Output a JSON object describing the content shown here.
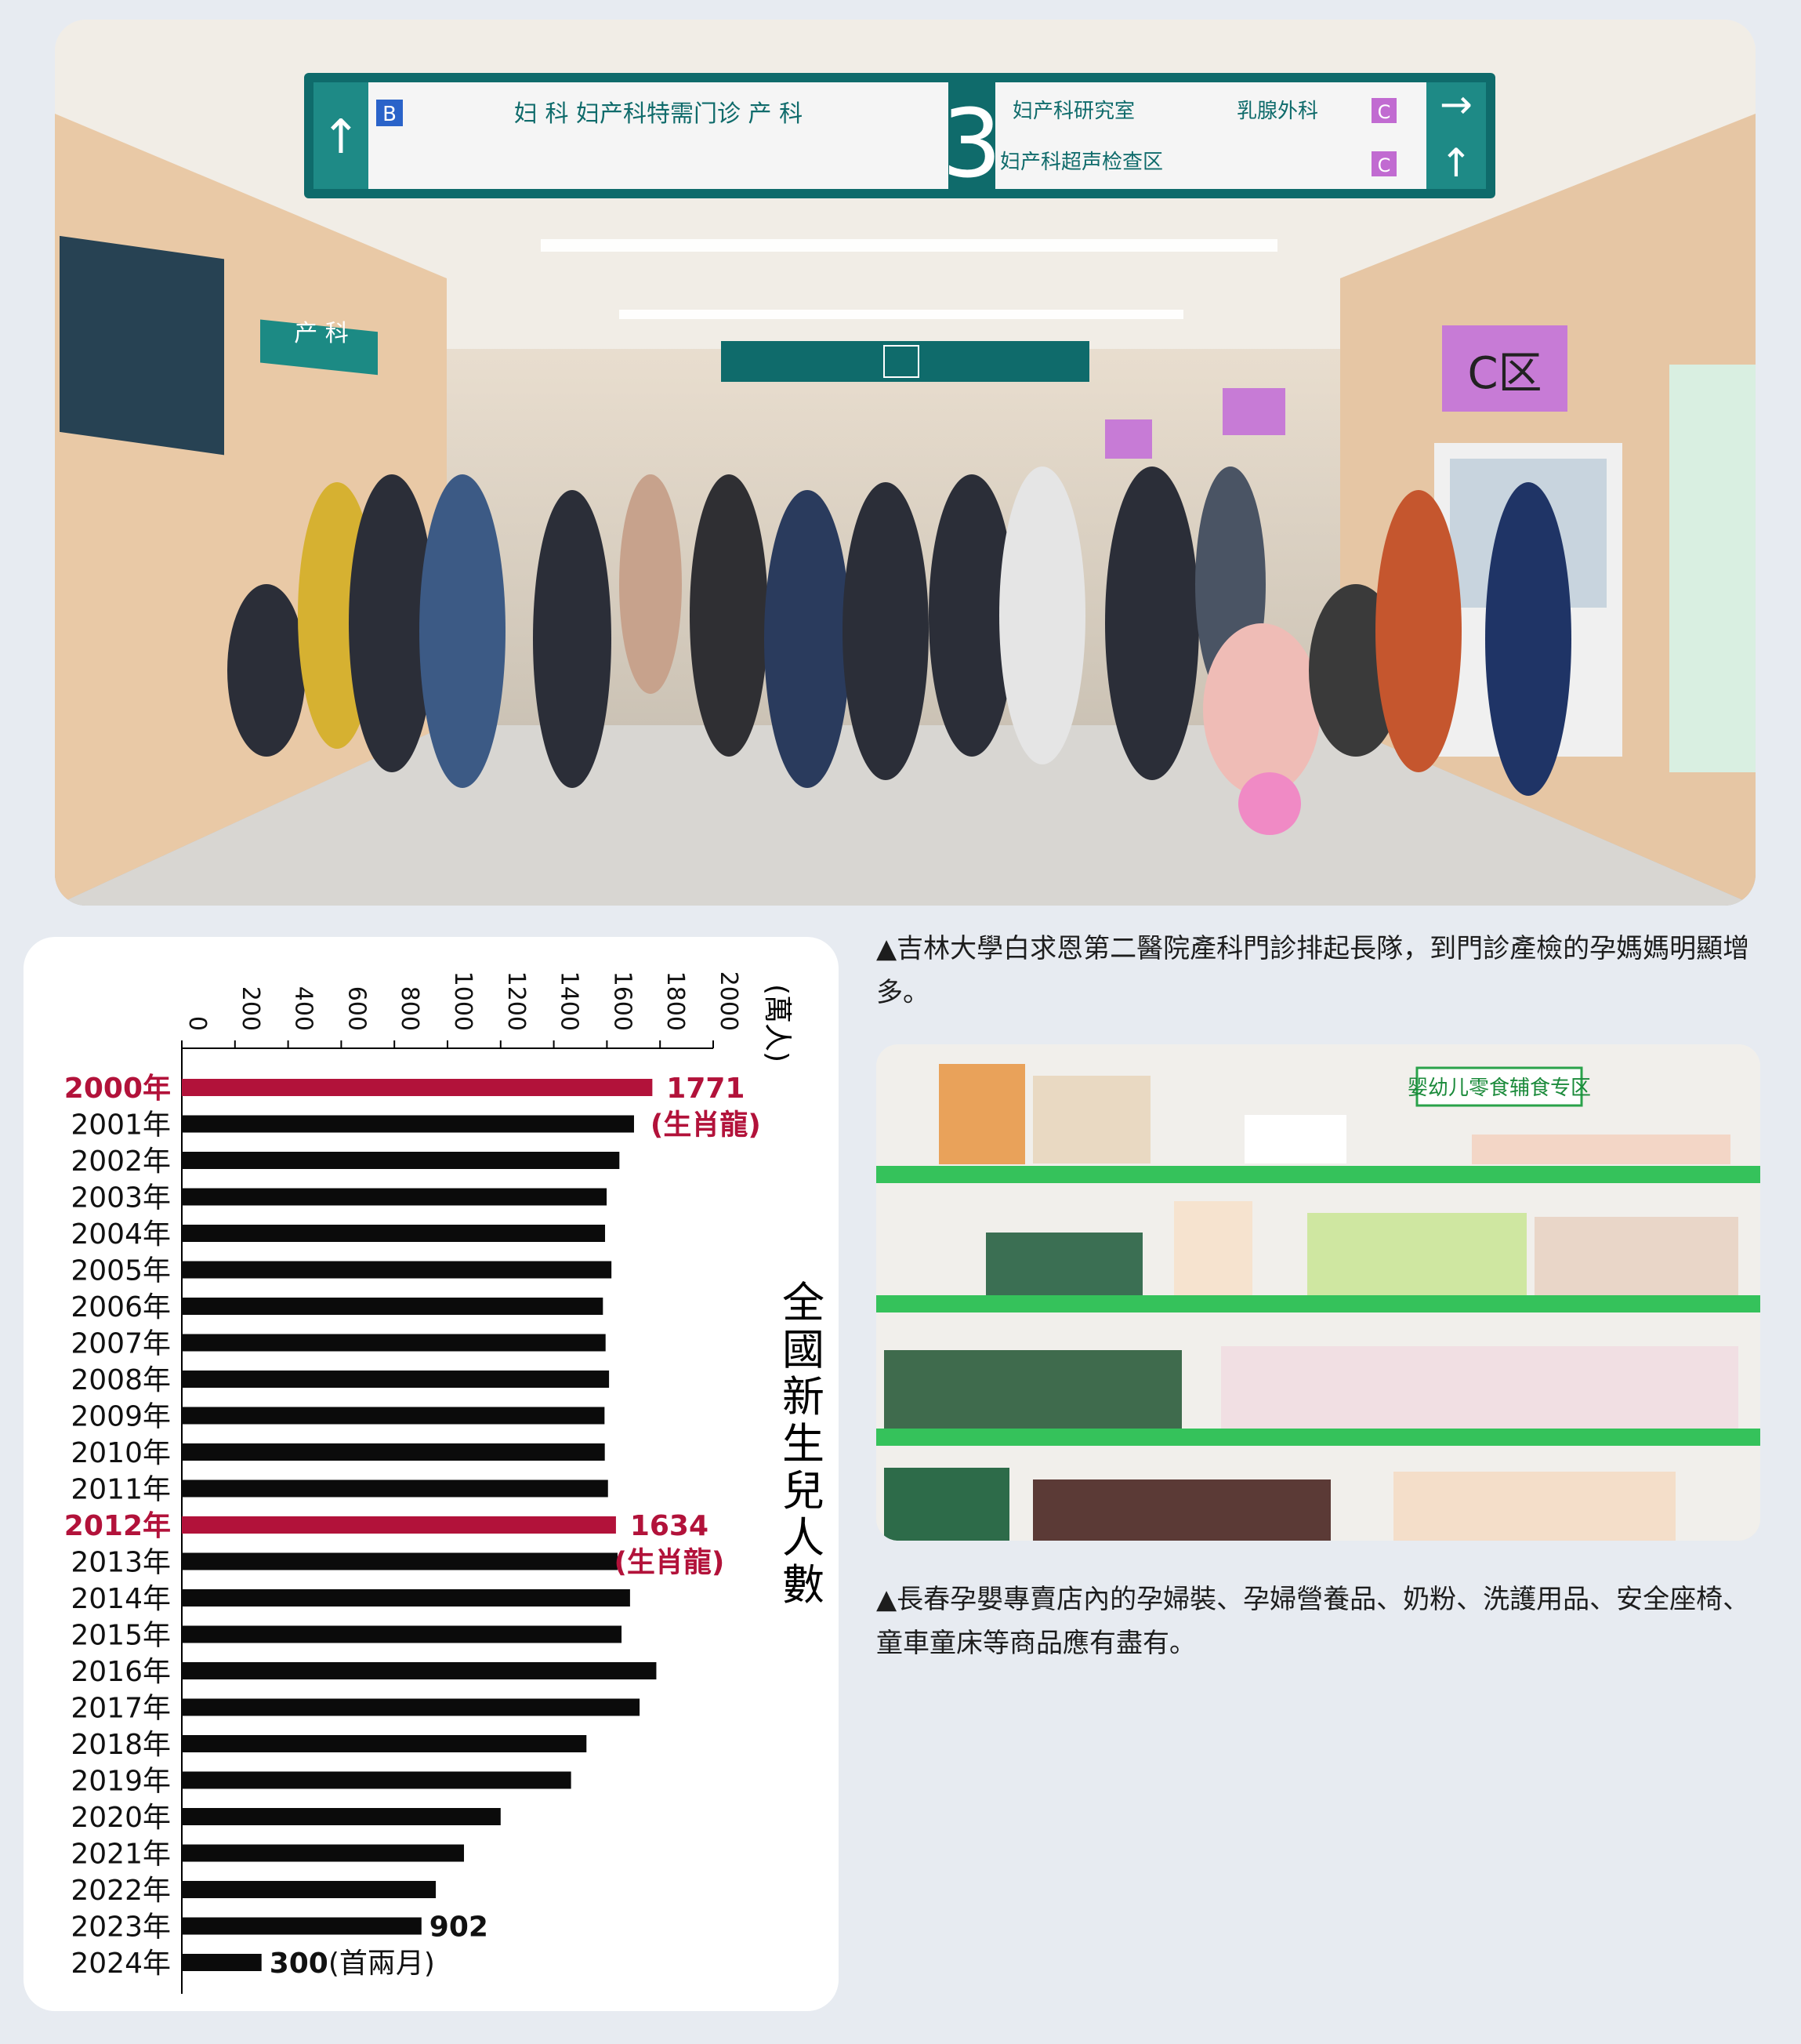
{
  "captions": {
    "hospital": "▲吉林大學白求恩第二醫院產科門診排起長隊，到門診產檢的孕媽媽明顯增多。",
    "shop": "▲長春孕嬰專賣店內的孕婦裝、孕婦營養品、奶粉、洗護用品、安全座椅、童車童床等商品應有盡有。"
  },
  "hospital_signs": {
    "number": "3",
    "zone_b": "B",
    "left_text": "妇 科      妇产科特需门诊      产 科",
    "right_top": "妇产科研究室",
    "right_top2": "乳腺外科",
    "right_bottom": "妇产科超声检查区",
    "zone_c": "C",
    "zone_c_label": "C区",
    "side_sign": "产 科"
  },
  "shop_sign": "婴幼儿零食辅食专区",
  "chart_data": {
    "type": "bar",
    "orientation": "horizontal",
    "title": "全國新生兒人數",
    "unit": "(萬人)",
    "xlim": [
      0,
      2000
    ],
    "ticks": [
      0,
      200,
      400,
      600,
      800,
      1000,
      1200,
      1400,
      1600,
      1800,
      2000
    ],
    "highlight_color": "#b2123a",
    "bar_color": "#0b0b0b",
    "categories": [
      "2000年",
      "2001年",
      "2002年",
      "2003年",
      "2004年",
      "2005年",
      "2006年",
      "2007年",
      "2008年",
      "2009年",
      "2010年",
      "2011年",
      "2012年",
      "2013年",
      "2014年",
      "2015年",
      "2016年",
      "2017年",
      "2018年",
      "2019年",
      "2020年",
      "2021年",
      "2022年",
      "2023年",
      "2024年"
    ],
    "values": [
      1771,
      1702,
      1647,
      1599,
      1593,
      1617,
      1585,
      1595,
      1608,
      1591,
      1592,
      1604,
      1634,
      1640,
      1687,
      1655,
      1786,
      1723,
      1523,
      1465,
      1200,
      1062,
      956,
      902,
      300
    ],
    "highlighted": [
      "2000年",
      "2012年"
    ],
    "data_labels": [
      {
        "category": "2000年",
        "value_text": "1771",
        "note": "(生肖龍)"
      },
      {
        "category": "2012年",
        "value_text": "1634",
        "note": "(生肖龍)"
      },
      {
        "category": "2023年",
        "value_text": "902",
        "note": ""
      },
      {
        "category": "2024年",
        "value_text": "300",
        "note": "(首兩月)"
      }
    ]
  }
}
